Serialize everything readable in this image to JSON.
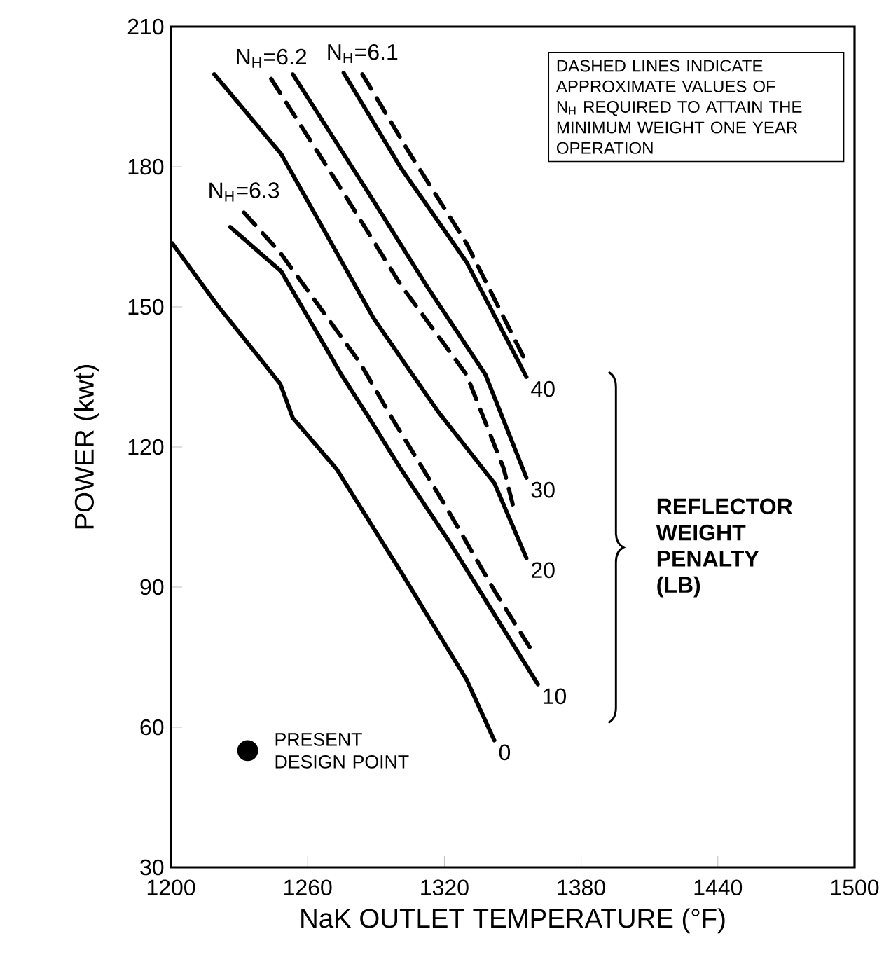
{
  "chart_data": {
    "type": "line",
    "xlabel": "NaK OUTLET TEMPERATURE (°F)",
    "ylabel": "POWER (kwt)",
    "xlim": [
      1200,
      1500
    ],
    "xticks": [
      1200,
      1260,
      1320,
      1380,
      1440,
      1500
    ],
    "ylim": [
      30,
      210
    ],
    "yticks": [
      30,
      60,
      90,
      120,
      150,
      180,
      210
    ],
    "series": [
      {
        "name": "0",
        "color": "#000000",
        "line_style": "solid",
        "x": [
          1200.6,
          1220,
          1248,
          1253.5,
          1272.8,
          1301,
          1329.7,
          1341.9
        ],
        "values": [
          163.6,
          150.6,
          133.5,
          126.2,
          115.2,
          93.2,
          70.2,
          57.2
        ]
      },
      {
        "name": "N$_{H}$=6.3",
        "color": "#000000",
        "line_style": "dashed",
        "x": [
          1232,
          1248,
          1283,
          1297,
          1319.5,
          1342,
          1358
        ],
        "values": [
          170.2,
          161.6,
          138,
          126.2,
          108.2,
          89.2,
          76.7
        ]
      },
      {
        "name": "10",
        "color": "#000000",
        "line_style": "solid",
        "x": [
          1226,
          1248.4,
          1274.8,
          1287,
          1301,
          1321.5,
          1341.9,
          1361
        ],
        "values": [
          167.1,
          157.6,
          135.5,
          126.2,
          115.2,
          100.2,
          84.2,
          69.2
        ]
      },
      {
        "name": "20",
        "color": "#000000",
        "line_style": "solid",
        "x": [
          1219,
          1248.4,
          1289,
          1317.5,
          1342,
          1356
        ],
        "values": [
          199.8,
          182.7,
          147.5,
          127.4,
          112.2,
          96.2
        ]
      },
      {
        "name": "N$_{H}$=6.2",
        "color": "#000000",
        "line_style": "dashed",
        "x": [
          1244,
          1272.8,
          1301,
          1329.7,
          1346,
          1350
        ],
        "values": [
          198.8,
          176.7,
          154.6,
          135.5,
          115.4,
          107.7
        ]
      },
      {
        "name": "30",
        "color": "#000000",
        "line_style": "solid",
        "x": [
          1253.5,
          1285,
          1313.4,
          1338,
          1356
        ],
        "values": [
          199.8,
          175.7,
          153.6,
          135.5,
          113.4
        ]
      },
      {
        "name": "40",
        "color": "#000000",
        "line_style": "solid",
        "x": [
          1275.8,
          1301,
          1329.7,
          1356
        ],
        "values": [
          200.1,
          179.7,
          159.6,
          135
        ]
      },
      {
        "name": "N$_{H}$=6.1",
        "color": "#000000",
        "line_style": "dashed",
        "x": [
          1284,
          1305,
          1329.7,
          1355
        ],
        "values": [
          199.8,
          182.7,
          163.6,
          139
        ]
      },
      {
        "name": "PRESENT DESIGN POINT",
        "type": "scatter",
        "marker": "circle",
        "color": "#000000",
        "x": [
          1233.7
        ],
        "values": [
          55
        ]
      }
    ],
    "annotations": [
      "DASHED LINES INDICATE APPROXIMATE VALUES OF N$_{H}$ REQUIRED TO ATTAIN THE MINIMUM WEIGHT ONE YEAR OPERATION",
      "REFLECTOR WEIGHT PENALTY (LB)"
    ],
    "grid": false
  }
}
